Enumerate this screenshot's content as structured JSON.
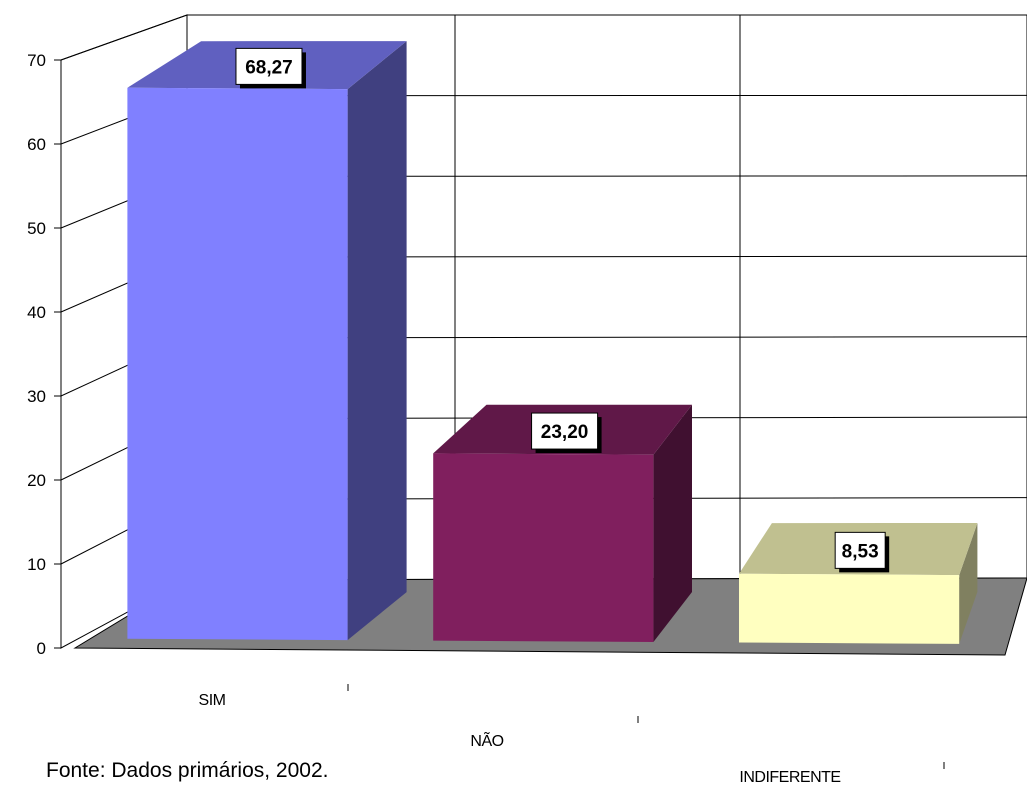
{
  "chart_data": {
    "type": "bar",
    "categories": [
      "SIM",
      "NÃO",
      "INDIFERENTE"
    ],
    "values": [
      68.27,
      23.2,
      8.53
    ],
    "data_labels": [
      "68,27",
      "23,20",
      "8,53"
    ],
    "yticks": [
      "0",
      "10",
      "20",
      "30",
      "40",
      "50",
      "60",
      "70"
    ],
    "ylim": [
      0,
      70
    ],
    "grid": true,
    "legend": "none",
    "colors": {
      "SIM": {
        "front": "#8080ff",
        "side": "#404080",
        "top": "#6060c0"
      },
      "NÃO": {
        "front": "#801f5e",
        "side": "#401030",
        "top": "#601848"
      },
      "INDIFERENTE": {
        "front": "#ffffc0",
        "side": "#808060",
        "top": "#c0c090"
      },
      "floor": "#808080"
    }
  },
  "source_note": "Fonte: Dados primários, 2002."
}
